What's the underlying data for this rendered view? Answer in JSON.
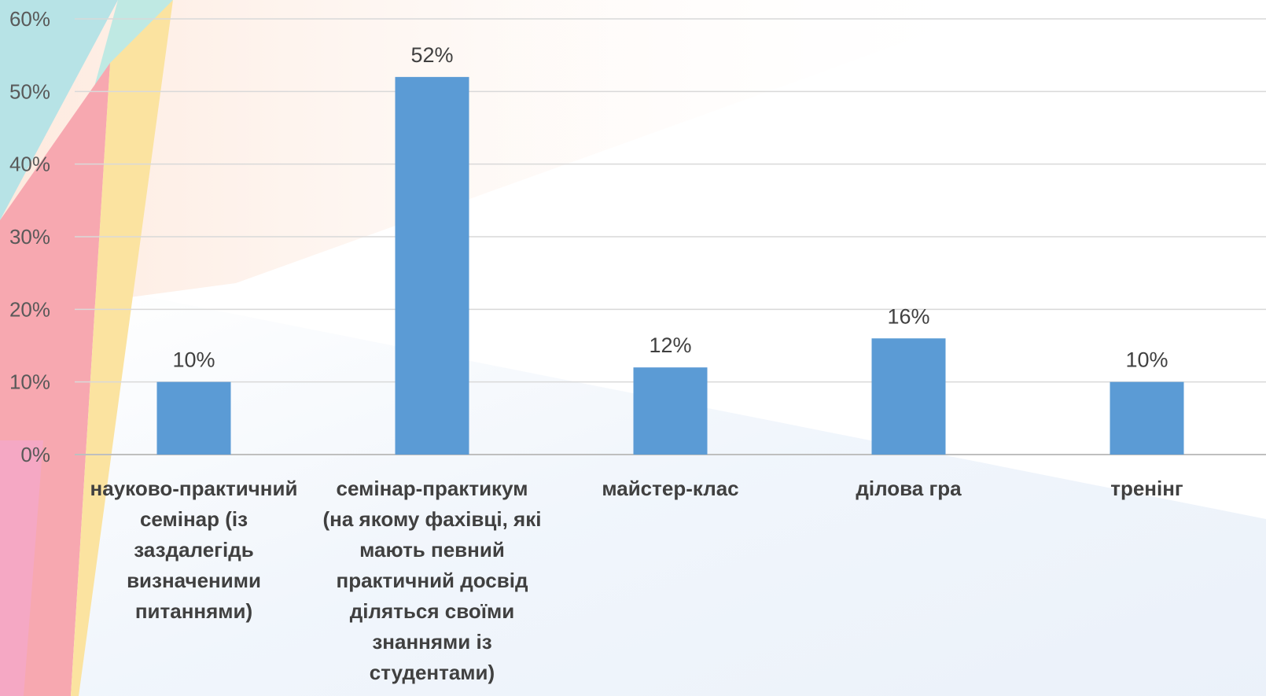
{
  "chart_data": {
    "type": "bar",
    "categories": [
      "науково-практичний семінар (із заздалегідь визначеними питаннями)",
      "семінар-практикум (на якому фахівці, які мають певний практичний досвід діляться своїми знаннями із студентами)",
      "майстер-клас",
      "ділова гра",
      "тренінг"
    ],
    "category_lines": [
      [
        "науково-практичний",
        "семінар (із",
        "заздалегідь",
        "визначеними",
        "питаннями)"
      ],
      [
        "семінар-практикум",
        "(на якому фахівці, які",
        "мають певний",
        "практичний досвід",
        "діляться своїми",
        "знаннями із",
        "студентами)"
      ],
      [
        "майстер-клас"
      ],
      [
        "ділова гра"
      ],
      [
        "тренінг"
      ]
    ],
    "values": [
      10,
      52,
      12,
      16,
      10
    ],
    "data_labels": [
      "10%",
      "52%",
      "12%",
      "16%",
      "10%"
    ],
    "title": "",
    "xlabel": "",
    "ylabel": "",
    "ylim": [
      0,
      60
    ],
    "y_ticks": [
      "0%",
      "10%",
      "20%",
      "30%",
      "40%",
      "50%",
      "60%"
    ],
    "grid": true,
    "bar_color": "#5b9bd5"
  }
}
